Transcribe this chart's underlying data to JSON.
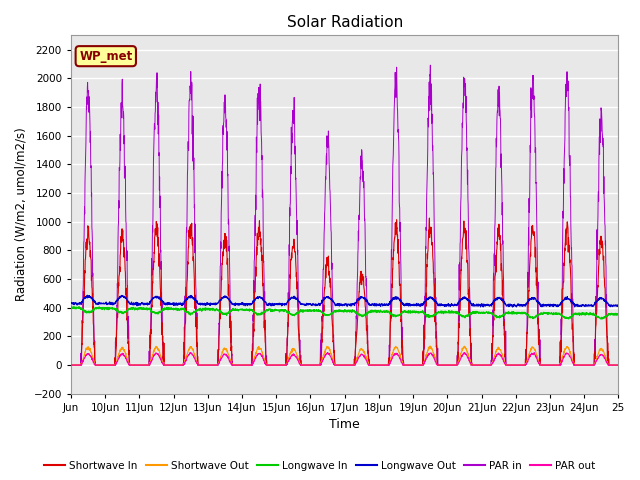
{
  "title": "Solar Radiation",
  "ylabel": "Radiation (W/m2, umol/m2/s)",
  "xlabel": "Time",
  "ylim": [
    -200,
    2300
  ],
  "yticks": [
    -200,
    0,
    200,
    400,
    600,
    800,
    1000,
    1200,
    1400,
    1600,
    1800,
    2000,
    2200
  ],
  "n_days": 16,
  "points_per_day": 144,
  "colors": {
    "shortwave_in": "#dd0000",
    "shortwave_out": "#ff9900",
    "longwave_in": "#00cc00",
    "longwave_out": "#0000cc",
    "par_in": "#aa00cc",
    "par_out": "#ff00aa"
  },
  "annotation_text": "WP_met",
  "annotation_bg": "#ffff99",
  "annotation_fg": "#880000",
  "plot_bg": "#e8e8e8",
  "grid_color": "#ffffff",
  "x_tick_labels": [
    "Jun",
    "10Jun",
    "11Jun",
    "12Jun",
    "13Jun",
    "14Jun",
    "15Jun",
    "16Jun",
    "17Jun",
    "18Jun",
    "19Jun",
    "20Jun",
    "21Jun",
    "22Jun",
    "23Jun",
    "24Jun",
    "25"
  ],
  "figsize": [
    6.4,
    4.8
  ],
  "dpi": 100
}
